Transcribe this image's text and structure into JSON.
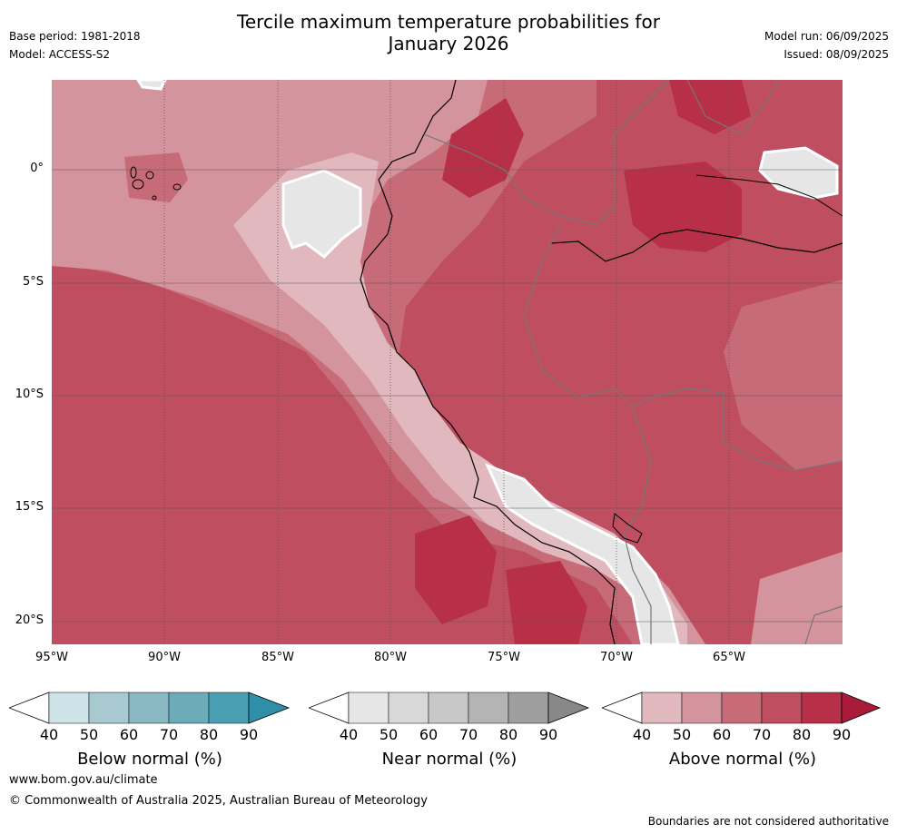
{
  "title": {
    "line1": "Tercile maximum temperature probabilities for",
    "line2": "January 2026"
  },
  "meta_left": {
    "base_period": "Base period: 1981-2018",
    "model": "Model: ACCESS-S2"
  },
  "meta_right": {
    "model_run": "Model run: 06/09/2025",
    "issued": "Issued: 08/09/2025"
  },
  "map": {
    "lat_labels": [
      "0°",
      "5°S",
      "10°S",
      "15°S",
      "20°S"
    ],
    "lon_labels": [
      "95°W",
      "90°W",
      "85°W",
      "80°W",
      "75°W",
      "70°W",
      "65°W"
    ]
  },
  "colorbars": [
    {
      "name": "below",
      "title": "Below normal (%)",
      "ticks": [
        "40",
        "50",
        "60",
        "70",
        "80",
        "90"
      ],
      "colors": [
        "#cde3e8",
        "#a7c9cf",
        "#89b8c3",
        "#6bacb8",
        "#4aa0b2",
        "#2f8ea8"
      ]
    },
    {
      "name": "near",
      "title": "Near normal (%)",
      "ticks": [
        "40",
        "50",
        "60",
        "70",
        "80",
        "90"
      ],
      "colors": [
        "#e6e6e6",
        "#d8d8d8",
        "#c8c8c8",
        "#b4b4b4",
        "#9e9e9e",
        "#888888"
      ]
    },
    {
      "name": "above",
      "title": "Above normal (%)",
      "ticks": [
        "40",
        "50",
        "60",
        "70",
        "80",
        "90"
      ],
      "colors": [
        "#e2b8bf",
        "#d4949d",
        "#c76b79",
        "#be4e60",
        "#b83048",
        "#a81c3a"
      ]
    }
  ],
  "footer": {
    "url": "www.bom.gov.au/climate",
    "copyright": "© Commonwealth of Australia 2025, Australian Bureau of Meteorology",
    "note": "Boundaries are not considered authoritative"
  }
}
